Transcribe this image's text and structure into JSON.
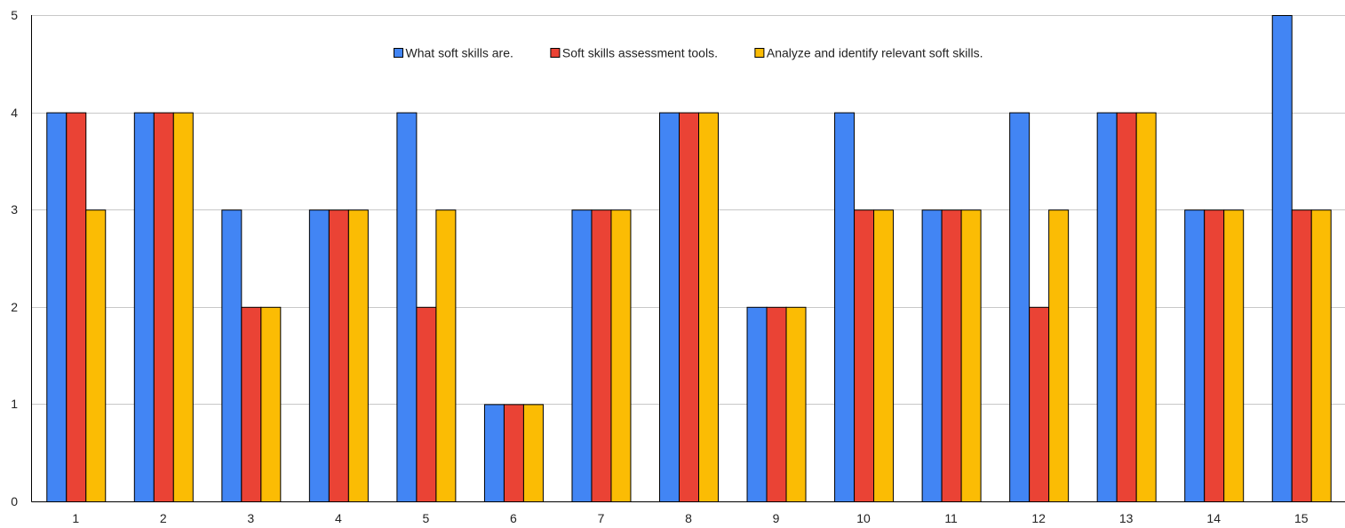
{
  "chart_data": {
    "type": "bar",
    "categories": [
      "1",
      "2",
      "3",
      "4",
      "5",
      "6",
      "7",
      "8",
      "9",
      "10",
      "11",
      "12",
      "13",
      "14",
      "15"
    ],
    "series": [
      {
        "name": "What soft skills are.",
        "color": "#4285F4",
        "values": [
          4,
          4,
          3,
          3,
          4,
          1,
          3,
          4,
          2,
          4,
          3,
          4,
          4,
          3,
          5
        ]
      },
      {
        "name": "Soft skills assessment tools.",
        "color": "#EA4335",
        "values": [
          4,
          4,
          2,
          3,
          2,
          1,
          3,
          4,
          2,
          3,
          3,
          2,
          4,
          3,
          3
        ]
      },
      {
        "name": "Analyze and identify relevant soft skills.",
        "color": "#FBBC04",
        "values": [
          3,
          4,
          2,
          3,
          3,
          1,
          3,
          4,
          2,
          3,
          3,
          3,
          4,
          3,
          3
        ]
      }
    ],
    "title": "",
    "xlabel": "",
    "ylabel": "",
    "ylim": [
      0,
      5
    ],
    "yticks": [
      0,
      1,
      2,
      3,
      4,
      5
    ],
    "grid": true,
    "legend_position": "top-center"
  }
}
